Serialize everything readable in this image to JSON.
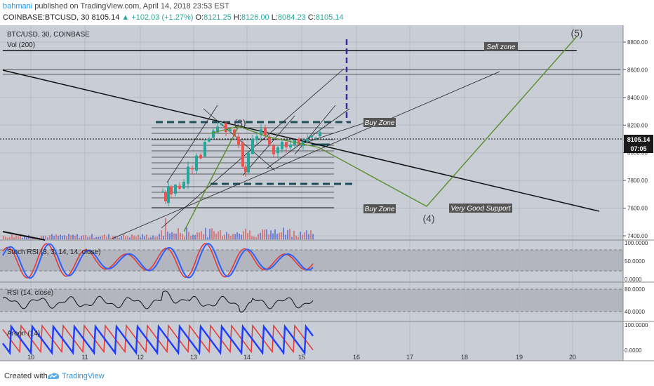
{
  "header": {
    "author": "bahmani",
    "published": "published on TradingView.com, April 14, 2018 23:53 EST",
    "symbol": "COINBASE:BTCUSD, 30",
    "last": "8105.14",
    "change": "▲ +102.03 (+1.27%)",
    "o_label": "O:",
    "o_val": "8121.25",
    "h_label": "H:",
    "h_val": "8126.00",
    "l_label": "L:",
    "l_val": "8084.23",
    "c_label": "C:",
    "c_val": "8105.14"
  },
  "main_pane": {
    "title": "BTC/USD, 30, COINBASE",
    "volume_label": "Vol (200)",
    "price_ticks": [
      "8800.00",
      "8600.00",
      "8400.00",
      "8200.00",
      "8000.00",
      "7800.00",
      "7600.00",
      "7400.00"
    ],
    "price_tick_values": [
      8800,
      8600,
      8400,
      8200,
      8000,
      7800,
      7600,
      7400
    ],
    "last_price_tag": "8105.14",
    "countdown_tag": "07:05",
    "annotations": {
      "sell_zone": "Sell zone",
      "buy_zone_upper": "Buy Zone",
      "buy_zone_lower": "Buy Zone",
      "very_good_support": "Very Good Support",
      "wave3": "(3)",
      "wave4": "(4)",
      "wave5": "(5)"
    }
  },
  "stoch_pane": {
    "title": "Stoch RSI (3, 3, 14, 14, close)",
    "ticks": [
      "100.0000",
      "50.0000",
      "0.0000"
    ]
  },
  "rsi_pane": {
    "title": "RSI (14, close)",
    "ticks": [
      "80.0000",
      "40.0000"
    ]
  },
  "aroon_pane": {
    "title": "Aroon (14)",
    "ticks": [
      "100.0000",
      "0.0000"
    ]
  },
  "time_axis": {
    "labels": [
      "10",
      "11",
      "12",
      "13",
      "14",
      "15",
      "16",
      "17",
      "18",
      "19",
      "20"
    ]
  },
  "footer": {
    "created": "Created with",
    "brand": "TradingView"
  },
  "colors": {
    "bull": "#26a69a",
    "bear": "#ef5350",
    "stoch_k": "#2962ff",
    "stoch_d": "#e53935",
    "aroon_up": "#e53935",
    "aroon_down": "#1e3cff",
    "wave": "#5b8c2a",
    "zone": "#1f4e5a",
    "target": "#3a2a9a"
  }
}
